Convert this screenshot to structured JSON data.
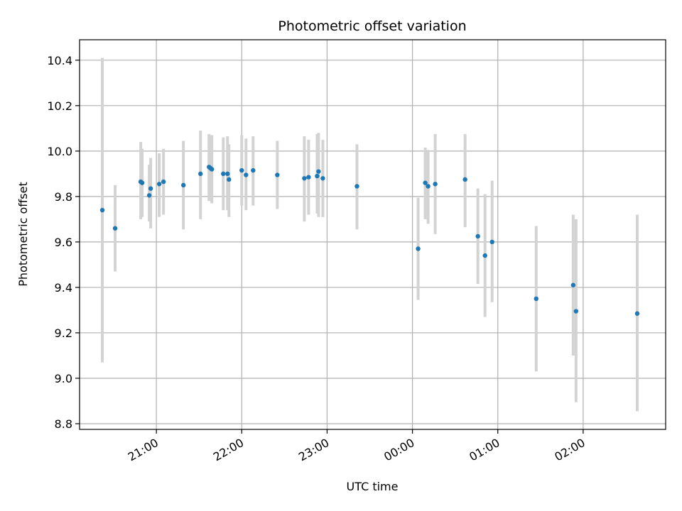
{
  "chart_data": {
    "type": "scatter",
    "title": "Photometric offset variation",
    "xlabel": "UTC time",
    "ylabel": "Photometric offset",
    "x_unit": "UTC",
    "xlim": [
      "20:06",
      "26:58"
    ],
    "ylim": [
      8.775,
      10.49
    ],
    "grid": true,
    "x_tick_values": [
      "21:00",
      "22:00",
      "23:00",
      "24:00",
      "25:00",
      "26:00"
    ],
    "x_tick_labels": [
      "21:00",
      "22:00",
      "23:00",
      "00:00",
      "01:00",
      "02:00"
    ],
    "y_ticks": [
      8.8,
      9.0,
      9.2,
      9.4,
      9.6,
      9.8,
      10.0,
      10.2,
      10.4
    ],
    "y_tick_labels": [
      "8.8",
      "9.0",
      "9.2",
      "9.4",
      "9.6",
      "9.8",
      "10.0",
      "10.2",
      "10.4"
    ],
    "colors": {
      "point": "#1f77b4",
      "errorbar": "#d3d3d3",
      "grid": "#b0b0b0"
    },
    "points": [
      {
        "t": "20:22",
        "y": 9.74,
        "err_low": 9.07,
        "err_high": 10.41
      },
      {
        "t": "20:31",
        "y": 9.66,
        "err_low": 9.47,
        "err_high": 9.85
      },
      {
        "t": "20:49",
        "y": 9.865,
        "err_low": 9.7,
        "err_high": 10.04
      },
      {
        "t": "20:50",
        "y": 9.86,
        "err_low": 9.71,
        "err_high": 10.01
      },
      {
        "t": "20:55",
        "y": 9.805,
        "err_low": 9.69,
        "err_high": 9.94
      },
      {
        "t": "20:56",
        "y": 9.835,
        "err_low": 9.66,
        "err_high": 9.97
      },
      {
        "t": "21:02",
        "y": 9.855,
        "err_low": 9.71,
        "err_high": 9.99
      },
      {
        "t": "21:05",
        "y": 9.865,
        "err_low": 9.72,
        "err_high": 10.01
      },
      {
        "t": "21:19",
        "y": 9.85,
        "err_low": 9.655,
        "err_high": 10.045
      },
      {
        "t": "21:31",
        "y": 9.9,
        "err_low": 9.7,
        "err_high": 10.09
      },
      {
        "t": "21:37",
        "y": 9.93,
        "err_low": 9.78,
        "err_high": 10.075
      },
      {
        "t": "21:38",
        "y": 9.925,
        "err_low": 9.79,
        "err_high": 10.065
      },
      {
        "t": "21:39",
        "y": 9.92,
        "err_low": 9.77,
        "err_high": 10.07
      },
      {
        "t": "21:47",
        "y": 9.9,
        "err_low": 9.74,
        "err_high": 10.06
      },
      {
        "t": "21:50",
        "y": 9.9,
        "err_low": 9.74,
        "err_high": 10.065
      },
      {
        "t": "21:51",
        "y": 9.875,
        "err_low": 9.71,
        "err_high": 10.03
      },
      {
        "t": "22:00",
        "y": 9.915,
        "err_low": 9.76,
        "err_high": 10.07
      },
      {
        "t": "22:03",
        "y": 9.895,
        "err_low": 9.74,
        "err_high": 10.055
      },
      {
        "t": "22:08",
        "y": 9.915,
        "err_low": 9.76,
        "err_high": 10.065
      },
      {
        "t": "22:25",
        "y": 9.895,
        "err_low": 9.745,
        "err_high": 10.045
      },
      {
        "t": "22:44",
        "y": 9.88,
        "err_low": 9.69,
        "err_high": 10.065
      },
      {
        "t": "22:47",
        "y": 9.885,
        "err_low": 9.72,
        "err_high": 10.05
      },
      {
        "t": "22:53",
        "y": 9.89,
        "err_low": 9.725,
        "err_high": 10.075
      },
      {
        "t": "22:54",
        "y": 9.91,
        "err_low": 9.71,
        "err_high": 10.08
      },
      {
        "t": "22:57",
        "y": 9.88,
        "err_low": 9.71,
        "err_high": 10.05
      },
      {
        "t": "23:21",
        "y": 9.845,
        "err_low": 9.655,
        "err_high": 10.03
      },
      {
        "t": "24:04",
        "y": 9.57,
        "err_low": 9.345,
        "err_high": 9.795
      },
      {
        "t": "24:09",
        "y": 9.86,
        "err_low": 9.7,
        "err_high": 10.015
      },
      {
        "t": "24:11",
        "y": 9.845,
        "err_low": 9.68,
        "err_high": 10.005
      },
      {
        "t": "24:16",
        "y": 9.855,
        "err_low": 9.635,
        "err_high": 10.075
      },
      {
        "t": "24:37",
        "y": 9.875,
        "err_low": 9.665,
        "err_high": 10.075
      },
      {
        "t": "24:46",
        "y": 9.625,
        "err_low": 9.415,
        "err_high": 9.835
      },
      {
        "t": "24:51",
        "y": 9.54,
        "err_low": 9.27,
        "err_high": 9.81
      },
      {
        "t": "24:56",
        "y": 9.6,
        "err_low": 9.335,
        "err_high": 9.87
      },
      {
        "t": "25:27",
        "y": 9.35,
        "err_low": 9.03,
        "err_high": 9.67
      },
      {
        "t": "25:53",
        "y": 9.41,
        "err_low": 9.1,
        "err_high": 9.72
      },
      {
        "t": "25:55",
        "y": 9.295,
        "err_low": 8.895,
        "err_high": 9.7
      },
      {
        "t": "26:38",
        "y": 9.285,
        "err_low": 8.855,
        "err_high": 9.72
      }
    ]
  }
}
